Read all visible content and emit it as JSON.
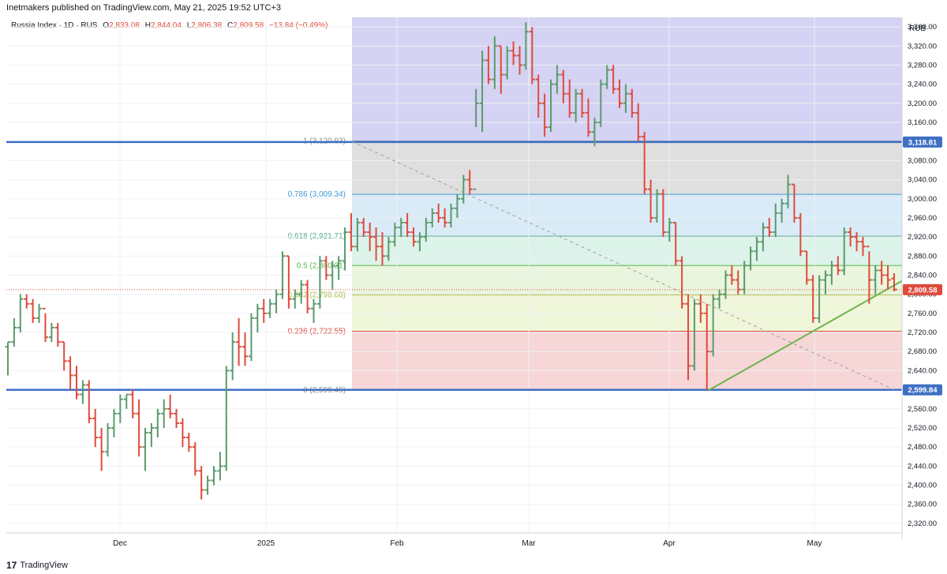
{
  "header": {
    "published": "Inetmakers published on TradingView.com, May 21, 2025 19:52 UTC+3"
  },
  "legend": {
    "symbol": "Russia Index · 1D · RUS",
    "o_label": "O",
    "o": "2,833.08",
    "h_label": "H",
    "h": "2,844.04",
    "l_label": "L",
    "l": "2,806.38",
    "c_label": "C",
    "c": "2,809.58",
    "change": "−13.84 (−0.49%)"
  },
  "footer": {
    "brand": "TradingView",
    "logo": "17"
  },
  "colors": {
    "up": "#5b9a6c",
    "down": "#e04a3c",
    "blue": "#3f6fc4",
    "trend": "#6cb44c"
  },
  "chart_data": {
    "type": "ohlc-bar",
    "currency": "RUB",
    "ylim": [
      2300,
      3380
    ],
    "y_ticks": [
      2320,
      2360,
      2400,
      2440,
      2480,
      2520,
      2560,
      2600,
      2640,
      2680,
      2720,
      2760,
      2800,
      2840,
      2880,
      2920,
      2960,
      3000,
      3040,
      3080,
      3120,
      3160,
      3200,
      3240,
      3280,
      3320,
      3360
    ],
    "x_labels": [
      "Dec",
      "2025",
      "Feb",
      "Mar",
      "Apr",
      "May"
    ],
    "last_price": "2,809.58",
    "hlines": [
      {
        "value": 3118.81,
        "label": "3,118.81"
      },
      {
        "value": 2599.84,
        "label": "2,599.84"
      }
    ],
    "fib_levels": [
      {
        "ratio": "1",
        "value": 3120.93,
        "label": "1 (3,120.93)"
      },
      {
        "ratio": "0.786",
        "value": 3009.34,
        "label": "0.786 (3,009.34)"
      },
      {
        "ratio": "0.618",
        "value": 2921.71,
        "label": "0.618 (2,921.71)"
      },
      {
        "ratio": "0.5",
        "value": 2860.21,
        "label": "0.5 (2,860.21)"
      },
      {
        "ratio": "0.382",
        "value": 2798.68,
        "label": "0.382 (2,798.68)"
      },
      {
        "ratio": "0.236",
        "value": 2722.55,
        "label": "0.236 (2,722.55)"
      },
      {
        "ratio": "0",
        "value": 2599.49,
        "label": "0 (2,599.49)"
      }
    ],
    "fib_extension": {
      "from": 3120.93,
      "to": 3380
    },
    "trendline": {
      "from_price": 2599,
      "to_price": 2828
    },
    "diagonal": {
      "from_price": 3120,
      "to_price": 2600
    },
    "bars": [
      [
        2690,
        2700,
        2630,
        2700
      ],
      [
        2700,
        2750,
        2690,
        2730
      ],
      [
        2730,
        2800,
        2720,
        2790
      ],
      [
        2790,
        2800,
        2770,
        2780
      ],
      [
        2780,
        2790,
        2740,
        2750
      ],
      [
        2750,
        2780,
        2740,
        2770
      ],
      [
        2770,
        2760,
        2700,
        2710
      ],
      [
        2710,
        2740,
        2700,
        2730
      ],
      [
        2730,
        2740,
        2690,
        2700
      ],
      [
        2700,
        2700,
        2640,
        2660
      ],
      [
        2660,
        2670,
        2600,
        2630
      ],
      [
        2630,
        2650,
        2580,
        2590
      ],
      [
        2590,
        2620,
        2570,
        2610
      ],
      [
        2610,
        2620,
        2530,
        2540
      ],
      [
        2540,
        2560,
        2480,
        2500
      ],
      [
        2500,
        2520,
        2430,
        2470
      ],
      [
        2470,
        2530,
        2460,
        2520
      ],
      [
        2520,
        2560,
        2500,
        2550
      ],
      [
        2550,
        2590,
        2530,
        2580
      ],
      [
        2580,
        2590,
        2560,
        2590
      ],
      [
        2590,
        2600,
        2540,
        2550
      ],
      [
        2550,
        2580,
        2460,
        2480
      ],
      [
        2480,
        2520,
        2430,
        2510
      ],
      [
        2510,
        2530,
        2480,
        2520
      ],
      [
        2520,
        2560,
        2500,
        2550
      ],
      [
        2550,
        2580,
        2520,
        2560
      ],
      [
        2560,
        2590,
        2540,
        2550
      ],
      [
        2550,
        2560,
        2520,
        2530
      ],
      [
        2530,
        2540,
        2480,
        2500
      ],
      [
        2500,
        2510,
        2470,
        2480
      ],
      [
        2480,
        2490,
        2420,
        2430
      ],
      [
        2430,
        2440,
        2370,
        2390
      ],
      [
        2390,
        2420,
        2380,
        2410
      ],
      [
        2410,
        2440,
        2400,
        2430
      ],
      [
        2430,
        2470,
        2410,
        2440
      ],
      [
        2440,
        2650,
        2430,
        2640
      ],
      [
        2640,
        2720,
        2620,
        2700
      ],
      [
        2700,
        2750,
        2650,
        2690
      ],
      [
        2690,
        2720,
        2650,
        2670
      ],
      [
        2670,
        2760,
        2660,
        2750
      ],
      [
        2750,
        2780,
        2720,
        2770
      ],
      [
        2770,
        2790,
        2740,
        2760
      ],
      [
        2760,
        2790,
        2750,
        2780
      ],
      [
        2780,
        2810,
        2760,
        2800
      ],
      [
        2800,
        2890,
        2790,
        2880
      ],
      [
        2880,
        2880,
        2770,
        2790
      ],
      [
        2790,
        2810,
        2770,
        2800
      ],
      [
        2800,
        2830,
        2780,
        2820
      ],
      [
        2820,
        2830,
        2760,
        2770
      ],
      [
        2770,
        2790,
        2740,
        2780
      ],
      [
        2780,
        2880,
        2770,
        2870
      ],
      [
        2870,
        2880,
        2830,
        2840
      ],
      [
        2840,
        2870,
        2810,
        2860
      ],
      [
        2860,
        2880,
        2830,
        2870
      ],
      [
        2870,
        2940,
        2850,
        2930
      ],
      [
        2930,
        2970,
        2890,
        2900
      ],
      [
        2900,
        2960,
        2890,
        2950
      ],
      [
        2950,
        2960,
        2920,
        2930
      ],
      [
        2930,
        2950,
        2890,
        2920
      ],
      [
        2920,
        2940,
        2870,
        2900
      ],
      [
        2900,
        2930,
        2860,
        2880
      ],
      [
        2880,
        2920,
        2870,
        2910
      ],
      [
        2910,
        2950,
        2900,
        2940
      ],
      [
        2940,
        2960,
        2920,
        2950
      ],
      [
        2950,
        2970,
        2920,
        2930
      ],
      [
        2930,
        2940,
        2900,
        2910
      ],
      [
        2910,
        2930,
        2890,
        2920
      ],
      [
        2920,
        2960,
        2910,
        2950
      ],
      [
        2950,
        2980,
        2940,
        2970
      ],
      [
        2970,
        2990,
        2950,
        2960
      ],
      [
        2960,
        2980,
        2940,
        2950
      ],
      [
        2950,
        2990,
        2940,
        2980
      ],
      [
        2980,
        3010,
        2960,
        3000
      ],
      [
        3000,
        3050,
        2990,
        3040
      ],
      [
        3040,
        3060,
        3010,
        3020
      ],
      [
        3020,
        3230,
        3150,
        3200
      ],
      [
        3200,
        3310,
        3140,
        3290
      ],
      [
        3290,
        3320,
        3240,
        3250
      ],
      [
        3250,
        3340,
        3230,
        3320
      ],
      [
        3320,
        3320,
        3220,
        3260
      ],
      [
        3260,
        3320,
        3250,
        3310
      ],
      [
        3310,
        3330,
        3280,
        3300
      ],
      [
        3300,
        3320,
        3260,
        3280
      ],
      [
        3280,
        3370,
        3270,
        3350
      ],
      [
        3350,
        3360,
        3240,
        3250
      ],
      [
        3250,
        3260,
        3170,
        3200
      ],
      [
        3200,
        3220,
        3130,
        3150
      ],
      [
        3150,
        3250,
        3140,
        3240
      ],
      [
        3240,
        3280,
        3220,
        3260
      ],
      [
        3260,
        3270,
        3200,
        3220
      ],
      [
        3220,
        3250,
        3170,
        3180
      ],
      [
        3180,
        3230,
        3160,
        3220
      ],
      [
        3220,
        3230,
        3170,
        3180
      ],
      [
        3180,
        3210,
        3130,
        3140
      ],
      [
        3140,
        3170,
        3110,
        3160
      ],
      [
        3160,
        3250,
        3150,
        3240
      ],
      [
        3240,
        3280,
        3230,
        3270
      ],
      [
        3270,
        3280,
        3220,
        3230
      ],
      [
        3230,
        3250,
        3190,
        3200
      ],
      [
        3200,
        3240,
        3180,
        3220
      ],
      [
        3220,
        3230,
        3170,
        3180
      ],
      [
        3180,
        3200,
        3120,
        3130
      ],
      [
        3130,
        3140,
        3010,
        3020
      ],
      [
        3020,
        3040,
        2950,
        2960
      ],
      [
        2960,
        3020,
        2950,
        3010
      ],
      [
        3010,
        3020,
        2920,
        2930
      ],
      [
        2930,
        2960,
        2910,
        2950
      ],
      [
        2950,
        2950,
        2860,
        2870
      ],
      [
        2870,
        2880,
        2770,
        2780
      ],
      [
        2780,
        2800,
        2620,
        2650
      ],
      [
        2650,
        2790,
        2640,
        2780
      ],
      [
        2780,
        2800,
        2740,
        2760
      ],
      [
        2760,
        2780,
        2600,
        2680
      ],
      [
        2680,
        2800,
        2670,
        2790
      ],
      [
        2790,
        2810,
        2770,
        2800
      ],
      [
        2800,
        2850,
        2790,
        2840
      ],
      [
        2840,
        2860,
        2820,
        2830
      ],
      [
        2830,
        2850,
        2800,
        2810
      ],
      [
        2810,
        2870,
        2800,
        2860
      ],
      [
        2860,
        2900,
        2850,
        2890
      ],
      [
        2890,
        2920,
        2870,
        2910
      ],
      [
        2910,
        2950,
        2890,
        2940
      ],
      [
        2940,
        2960,
        2920,
        2930
      ],
      [
        2930,
        2990,
        2920,
        2970
      ],
      [
        2970,
        3000,
        2950,
        2990
      ],
      [
        2990,
        3050,
        2980,
        3030
      ],
      [
        3030,
        3030,
        2950,
        2960
      ],
      [
        2960,
        2970,
        2880,
        2890
      ],
      [
        2890,
        2890,
        2820,
        2830
      ],
      [
        2830,
        2840,
        2740,
        2750
      ],
      [
        2750,
        2840,
        2740,
        2830
      ],
      [
        2830,
        2850,
        2800,
        2840
      ],
      [
        2840,
        2870,
        2820,
        2860
      ],
      [
        2860,
        2880,
        2840,
        2850
      ],
      [
        2850,
        2940,
        2840,
        2930
      ],
      [
        2930,
        2940,
        2900,
        2920
      ],
      [
        2920,
        2930,
        2890,
        2910
      ],
      [
        2910,
        2920,
        2880,
        2900
      ],
      [
        2900,
        2890,
        2780,
        2830
      ],
      [
        2830,
        2860,
        2800,
        2850
      ],
      [
        2850,
        2870,
        2820,
        2840
      ],
      [
        2840,
        2860,
        2810,
        2830
      ],
      [
        2833,
        2844,
        2806,
        2810
      ]
    ]
  }
}
